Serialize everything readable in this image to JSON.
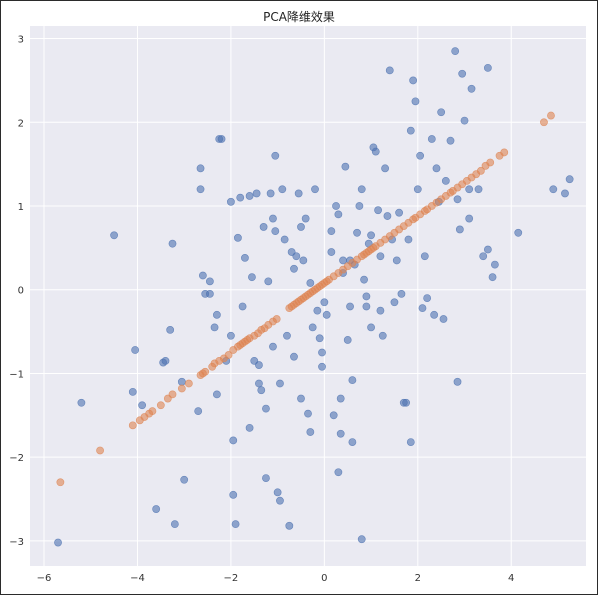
{
  "chart_data": {
    "type": "scatter",
    "title": "PCA降维效果",
    "xlabel": "",
    "ylabel": "",
    "xlim": [
      -6.3,
      5.6
    ],
    "ylim": [
      -3.3,
      3.15
    ],
    "xticks": [
      -6,
      -4,
      -2,
      0,
      2,
      4
    ],
    "yticks": [
      -3,
      -2,
      -1,
      0,
      1,
      2,
      3
    ],
    "xtick_labels": [
      "−6",
      "−4",
      "−2",
      "0",
      "2",
      "4"
    ],
    "ytick_labels": [
      "−3",
      "−2",
      "−1",
      "0",
      "1",
      "2",
      "3"
    ],
    "grid": true,
    "colors": {
      "background": "#eaeaf2",
      "grid": "#ffffff",
      "original": "#4c72b0",
      "projected": "#dd8452"
    },
    "series": [
      {
        "points": [
          [
            -5.7,
            -3.02
          ],
          [
            -5.2,
            -1.35
          ],
          [
            -4.5,
            0.65
          ],
          [
            -4.05,
            -0.72
          ],
          [
            -4.1,
            -1.22
          ],
          [
            -3.9,
            -1.38
          ],
          [
            -3.6,
            -2.62
          ],
          [
            -3.45,
            -0.87
          ],
          [
            -3.4,
            -0.85
          ],
          [
            -3.25,
            0.55
          ],
          [
            -3.3,
            -0.48
          ],
          [
            -3.2,
            -2.8
          ],
          [
            -3.0,
            -2.27
          ],
          [
            -2.65,
            1.45
          ],
          [
            -2.65,
            1.2
          ],
          [
            -2.6,
            0.17
          ],
          [
            -2.55,
            -0.05
          ],
          [
            -2.45,
            0.1
          ],
          [
            -2.45,
            -0.05
          ],
          [
            -2.35,
            -0.45
          ],
          [
            -2.3,
            -0.3
          ],
          [
            -2.25,
            1.8
          ],
          [
            -2.2,
            1.8
          ],
          [
            -2.3,
            -1.25
          ],
          [
            -2.1,
            -0.85
          ],
          [
            -2.0,
            1.05
          ],
          [
            -1.95,
            -1.8
          ],
          [
            -1.95,
            -2.45
          ],
          [
            -1.9,
            -2.8
          ],
          [
            -1.85,
            0.62
          ],
          [
            -1.8,
            1.1
          ],
          [
            -1.75,
            -0.2
          ],
          [
            -1.7,
            0.38
          ],
          [
            -1.6,
            1.12
          ],
          [
            -1.55,
            0.15
          ],
          [
            -1.5,
            -0.85
          ],
          [
            -1.4,
            -0.9
          ],
          [
            -1.35,
            -1.2
          ],
          [
            -1.25,
            -2.25
          ],
          [
            -1.25,
            -1.42
          ],
          [
            -1.3,
            0.75
          ],
          [
            -1.2,
            0.1
          ],
          [
            -1.15,
            1.15
          ],
          [
            -1.1,
            0.85
          ],
          [
            -1.1,
            -0.68
          ],
          [
            -1.05,
            1.6
          ],
          [
            -1.05,
            0.7
          ],
          [
            -1.0,
            -2.42
          ],
          [
            -0.95,
            -1.12
          ],
          [
            -0.95,
            -2.52
          ],
          [
            -0.9,
            1.2
          ],
          [
            -0.85,
            0.6
          ],
          [
            -0.8,
            -0.55
          ],
          [
            -0.75,
            -2.82
          ],
          [
            -0.7,
            0.45
          ],
          [
            -0.65,
            0.25
          ],
          [
            -0.65,
            -0.8
          ],
          [
            -0.55,
            1.15
          ],
          [
            -0.5,
            0.75
          ],
          [
            -0.5,
            -1.3
          ],
          [
            -0.45,
            0.35
          ],
          [
            -0.4,
            0.85
          ],
          [
            -0.35,
            -1.48
          ],
          [
            -0.3,
            0.08
          ],
          [
            -0.25,
            -0.45
          ],
          [
            -0.2,
            1.2
          ],
          [
            -0.15,
            -0.25
          ],
          [
            -0.1,
            -0.58
          ],
          [
            -0.05,
            -0.75
          ],
          [
            -0.05,
            -0.92
          ],
          [
            0.05,
            -0.3
          ],
          [
            0.15,
            0.7
          ],
          [
            0.2,
            -1.5
          ],
          [
            0.25,
            1.0
          ],
          [
            0.3,
            0.9
          ],
          [
            0.3,
            -2.18
          ],
          [
            0.35,
            -1.3
          ],
          [
            0.35,
            -1.72
          ],
          [
            0.4,
            0.2
          ],
          [
            0.45,
            1.47
          ],
          [
            0.5,
            -0.6
          ],
          [
            0.55,
            -0.2
          ],
          [
            0.55,
            0.35
          ],
          [
            0.6,
            -1.82
          ],
          [
            0.6,
            -1.08
          ],
          [
            0.65,
            0.3
          ],
          [
            0.7,
            0.68
          ],
          [
            0.75,
            1.0
          ],
          [
            0.8,
            1.2
          ],
          [
            0.8,
            -2.98
          ],
          [
            0.85,
            0.12
          ],
          [
            0.9,
            -0.08
          ],
          [
            0.95,
            0.55
          ],
          [
            1.0,
            0.65
          ],
          [
            1.05,
            1.7
          ],
          [
            1.1,
            1.65
          ],
          [
            1.15,
            0.95
          ],
          [
            1.2,
            0.4
          ],
          [
            1.25,
            -0.55
          ],
          [
            1.3,
            1.45
          ],
          [
            1.35,
            0.88
          ],
          [
            1.4,
            2.62
          ],
          [
            1.45,
            0.6
          ],
          [
            1.5,
            -0.15
          ],
          [
            1.55,
            0.35
          ],
          [
            1.6,
            0.92
          ],
          [
            1.65,
            -0.05
          ],
          [
            1.7,
            -1.35
          ],
          [
            1.75,
            -1.35
          ],
          [
            1.8,
            0.6
          ],
          [
            1.85,
            1.9
          ],
          [
            1.85,
            -1.82
          ],
          [
            1.9,
            2.5
          ],
          [
            1.95,
            2.25
          ],
          [
            2.0,
            1.2
          ],
          [
            2.05,
            1.6
          ],
          [
            2.1,
            -0.22
          ],
          [
            2.15,
            0.4
          ],
          [
            2.2,
            -0.1
          ],
          [
            2.3,
            1.8
          ],
          [
            2.4,
            1.45
          ],
          [
            2.45,
            1.05
          ],
          [
            2.5,
            2.12
          ],
          [
            2.55,
            -0.35
          ],
          [
            2.6,
            1.3
          ],
          [
            2.7,
            1.78
          ],
          [
            2.8,
            2.85
          ],
          [
            2.85,
            1.08
          ],
          [
            2.9,
            0.72
          ],
          [
            2.95,
            2.58
          ],
          [
            3.0,
            2.02
          ],
          [
            3.1,
            0.85
          ],
          [
            3.1,
            1.2
          ],
          [
            3.15,
            2.4
          ],
          [
            3.3,
            1.2
          ],
          [
            3.4,
            0.4
          ],
          [
            3.5,
            0.48
          ],
          [
            3.5,
            2.65
          ],
          [
            3.6,
            0.15
          ],
          [
            3.65,
            0.3
          ],
          [
            2.85,
            -1.1
          ],
          [
            4.15,
            0.68
          ],
          [
            4.9,
            1.2
          ],
          [
            5.15,
            1.15
          ],
          [
            5.25,
            1.32
          ],
          [
            -3.05,
            -1.1
          ],
          [
            -2.7,
            -1.45
          ],
          [
            -1.6,
            -1.65
          ],
          [
            -2.0,
            -0.55
          ],
          [
            -1.45,
            1.15
          ],
          [
            0.9,
            -0.2
          ],
          [
            1.0,
            -0.45
          ],
          [
            0.15,
            0.45
          ],
          [
            0.4,
            0.35
          ],
          [
            -0.6,
            0.4
          ],
          [
            1.2,
            -0.25
          ],
          [
            2.35,
            -0.3
          ],
          [
            0.0,
            -0.15
          ],
          [
            -1.4,
            -1.12
          ],
          [
            -0.3,
            -1.7
          ]
        ]
      },
      {
        "points": [
          [
            -5.65,
            -2.3
          ],
          [
            -4.8,
            -1.92
          ],
          [
            -4.1,
            -1.62
          ],
          [
            -3.95,
            -1.56
          ],
          [
            -3.85,
            -1.52
          ],
          [
            -3.75,
            -1.48
          ],
          [
            -3.68,
            -1.45
          ],
          [
            -3.5,
            -1.38
          ],
          [
            -3.35,
            -1.3
          ],
          [
            -3.25,
            -1.25
          ],
          [
            -3.05,
            -1.18
          ],
          [
            -2.9,
            -1.12
          ],
          [
            -2.65,
            -1.02
          ],
          [
            -2.6,
            -1.0
          ],
          [
            -2.55,
            -0.98
          ],
          [
            -2.4,
            -0.92
          ],
          [
            -2.35,
            -0.88
          ],
          [
            -2.25,
            -0.85
          ],
          [
            -2.15,
            -0.82
          ],
          [
            -2.05,
            -0.78
          ],
          [
            -1.95,
            -0.72
          ],
          [
            -1.85,
            -0.68
          ],
          [
            -1.8,
            -0.66
          ],
          [
            -1.75,
            -0.64
          ],
          [
            -1.7,
            -0.62
          ],
          [
            -1.65,
            -0.6
          ],
          [
            -1.6,
            -0.58
          ],
          [
            -1.5,
            -0.55
          ],
          [
            -1.42,
            -0.52
          ],
          [
            -1.35,
            -0.48
          ],
          [
            -1.28,
            -0.46
          ],
          [
            -1.2,
            -0.42
          ],
          [
            -1.1,
            -0.38
          ],
          [
            -1.02,
            -0.35
          ],
          [
            -0.75,
            -0.22
          ],
          [
            -0.7,
            -0.2
          ],
          [
            -0.65,
            -0.18
          ],
          [
            -0.6,
            -0.16
          ],
          [
            -0.55,
            -0.14
          ],
          [
            -0.5,
            -0.12
          ],
          [
            -0.45,
            -0.1
          ],
          [
            -0.4,
            -0.08
          ],
          [
            -0.35,
            -0.06
          ],
          [
            -0.3,
            -0.04
          ],
          [
            -0.25,
            -0.02
          ],
          [
            -0.2,
            0.0
          ],
          [
            -0.15,
            0.02
          ],
          [
            -0.1,
            0.04
          ],
          [
            -0.05,
            0.06
          ],
          [
            0.0,
            0.08
          ],
          [
            0.05,
            0.1
          ],
          [
            0.1,
            0.12
          ],
          [
            0.2,
            0.16
          ],
          [
            0.3,
            0.2
          ],
          [
            0.4,
            0.24
          ],
          [
            0.5,
            0.28
          ],
          [
            0.6,
            0.32
          ],
          [
            0.7,
            0.36
          ],
          [
            0.8,
            0.4
          ],
          [
            0.85,
            0.42
          ],
          [
            0.9,
            0.44
          ],
          [
            0.95,
            0.46
          ],
          [
            1.0,
            0.48
          ],
          [
            1.05,
            0.5
          ],
          [
            1.1,
            0.52
          ],
          [
            1.2,
            0.56
          ],
          [
            1.3,
            0.6
          ],
          [
            1.4,
            0.64
          ],
          [
            1.5,
            0.68
          ],
          [
            1.6,
            0.72
          ],
          [
            1.7,
            0.76
          ],
          [
            1.8,
            0.8
          ],
          [
            1.9,
            0.84
          ],
          [
            1.95,
            0.86
          ],
          [
            2.05,
            0.9
          ],
          [
            2.15,
            0.94
          ],
          [
            2.2,
            0.96
          ],
          [
            2.3,
            1.0
          ],
          [
            2.4,
            1.04
          ],
          [
            2.5,
            1.08
          ],
          [
            2.6,
            1.12
          ],
          [
            2.7,
            1.16
          ],
          [
            2.75,
            1.18
          ],
          [
            2.85,
            1.22
          ],
          [
            2.95,
            1.26
          ],
          [
            3.05,
            1.3
          ],
          [
            3.15,
            1.34
          ],
          [
            3.25,
            1.38
          ],
          [
            3.35,
            1.42
          ],
          [
            3.45,
            1.48
          ],
          [
            3.55,
            1.52
          ],
          [
            3.75,
            1.6
          ],
          [
            3.85,
            1.64
          ],
          [
            4.7,
            2.0
          ],
          [
            4.85,
            2.08
          ]
        ]
      }
    ]
  }
}
